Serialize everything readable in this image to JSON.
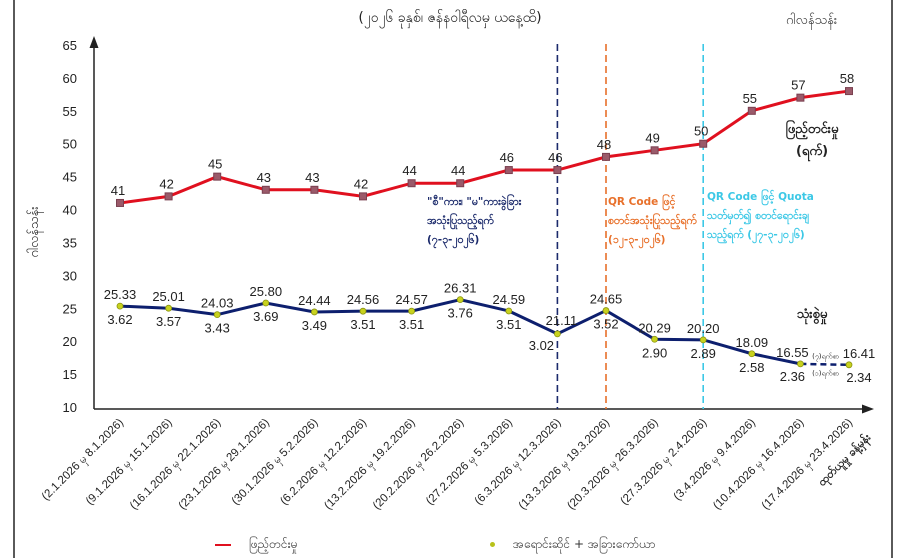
{
  "chart_data": {
    "type": "line",
    "title": "(၂၀၂၆ ခုနှစ်၊ ဇန်နဝါရီလမှ ယနေ့ထိ)",
    "unit_label": "ဂါလန်သန်း",
    "ylabel": "ဂါလန်သန်း",
    "xlabel": "",
    "ylim": [
      10,
      65
    ],
    "yticks": [
      10,
      15,
      20,
      25,
      30,
      35,
      40,
      45,
      50,
      55,
      60,
      65
    ],
    "grid": false,
    "categories": [
      "(2.1.2026 မှ 8.1.2026)",
      "(9.1.2026 မှ 15.1.2026)",
      "(16.1.2026 မှ 22.1.2026)",
      "(23.1.2026 မှ 29.1.2026)",
      "(30.1.2026 မှ 5.2.2026)",
      "(6.2.2026 မှ 12.2.2026)",
      "(13.2.2026 မှ 19.2.2026)",
      "(20.2.2026 မှ 26.2.2026)",
      "(27.2.2026 မှ 5.3.2026)",
      "(6.3.2026 မှ 12.3.2026)",
      "(13.3.2026 မှ 19.3.2026)",
      "(20.3.2026 မှ 26.3.2026)",
      "(27.3.2026 မှ 2.4.2026)",
      "(3.4.2026 မှ 9.4.2026)",
      "(10.4.2026 မှ 16.4.2026)",
      "(17.4.2026 မှ 23.4.2026)"
    ],
    "last_category_extra": "ထုတ်ယူမှု ခန့်မှန်း",
    "series": [
      {
        "name": "ဖြည့်တင်းမှု (ရက်)",
        "label": "ဖြည့်တင်းမှု",
        "label_sub": "(ရက်)",
        "legend": "ဖြည့်တင်းမှု",
        "color": "#e0101f",
        "marker": "square",
        "values": [
          41,
          42,
          45,
          43,
          43,
          42,
          44,
          44,
          46,
          46,
          48,
          49,
          50,
          55,
          57,
          58
        ],
        "value_labels": [
          "41",
          "42",
          "45",
          "43",
          "43",
          "42",
          "44",
          "44",
          "46",
          "46",
          "48",
          "49",
          "50",
          "55",
          "57",
          "58"
        ]
      },
      {
        "name": "သုံးစွဲမှု",
        "label": "သုံးစွဲမှု",
        "legend": "အရောင်းဆိုင် + အခြားကော်ယာ",
        "color": "#0d1f6e",
        "marker": "circle",
        "values": [
          25.33,
          25.01,
          24.03,
          25.8,
          24.44,
          24.56,
          24.57,
          26.31,
          24.59,
          21.11,
          24.65,
          20.29,
          20.2,
          18.09,
          16.55,
          16.41
        ],
        "value_labels": [
          "25.33",
          "25.01",
          "24.03",
          "25.80",
          "24.44",
          "24.56",
          "24.57",
          "26.31",
          "24.59",
          "21.11",
          "24.65",
          "20.29",
          "20.20",
          "18.09",
          "16.55",
          "16.41"
        ],
        "secondary_labels": [
          "3.62",
          "3.57",
          "3.43",
          "3.69",
          "3.49",
          "3.51",
          "3.51",
          "3.76",
          "3.51",
          "3.02",
          "3.52",
          "2.90",
          "2.89",
          "2.58",
          "2.36",
          "2.34"
        ]
      }
    ],
    "annotations": [
      {
        "at_category_index": 9,
        "color": "#1b2a6b",
        "lines": [
          "\"စီ\"ကား၊ \"မ\"ကားခွဲခြား",
          "အသုံးပြုသည့်ရက်",
          "(၇-၃-၂၀၂၆)"
        ]
      },
      {
        "at_category_index": 10,
        "color": "#e8702a",
        "lines": [
          "QR Code ဖြင့်",
          "စတင်အသုံးပြုသည့်ရက်",
          "(၁၂-၃-၂၀၂၆)"
        ]
      },
      {
        "at_category_index": 12,
        "color": "#3cc8e6",
        "lines": [
          "QR Code ဖြင့် Quota",
          "သတ်မှတ်၍ စတင်ရောင်းချ",
          "သည့်ရက် (၂၇-၃-၂၀၂၆)"
        ]
      }
    ],
    "small_notes": {
      "upper": "(၇)ရက်စာ",
      "lower": "(၁)ရက်စာ"
    },
    "legend_position": "bottom"
  }
}
